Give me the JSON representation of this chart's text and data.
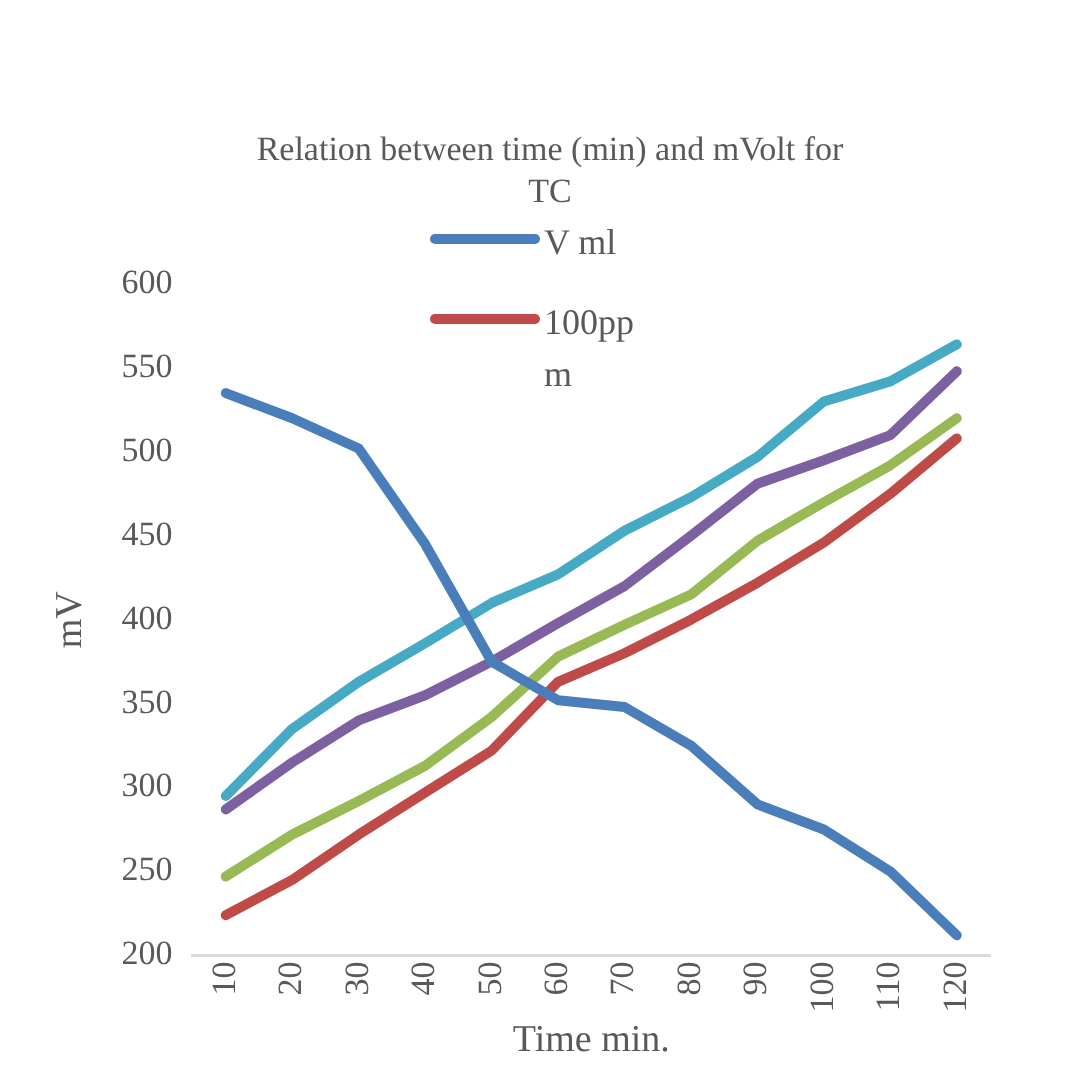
{
  "chart_data": {
    "type": "line",
    "title": "Relation between time (min) and mVolt for TC",
    "xlabel": "Time min.",
    "ylabel": "mV",
    "categories": [
      "10",
      "20",
      "30",
      "40",
      "50",
      "60",
      "70",
      "80",
      "90",
      "100",
      "110",
      "120"
    ],
    "series": [
      {
        "name": "V ml",
        "color": "#4a7ebb",
        "values": [
          535,
          520,
          502,
          445,
          375,
          352,
          348,
          325,
          290,
          275,
          250,
          212
        ]
      },
      {
        "name": "100ppm",
        "color": "#be4b48",
        "values": [
          224,
          245,
          272,
          297,
          322,
          363,
          380,
          400,
          422,
          446,
          475,
          508
        ]
      },
      {
        "color": "#98b954",
        "values": [
          247,
          272,
          292,
          313,
          342,
          378,
          397,
          415,
          447,
          470,
          492,
          520
        ]
      },
      {
        "color": "#7d60a0",
        "values": [
          287,
          315,
          340,
          355,
          375,
          398,
          420,
          450,
          481,
          495,
          510,
          548
        ]
      },
      {
        "color": "#46aac5",
        "values": [
          295,
          335,
          363,
          386,
          410,
          427,
          453,
          473,
          497,
          530,
          542,
          564
        ]
      }
    ],
    "ylim": [
      200,
      600
    ],
    "yticks": [
      200,
      250,
      300,
      350,
      400,
      450,
      500,
      550,
      600
    ],
    "grid": false,
    "legend": "top",
    "marker": "none",
    "line_style": "solid"
  }
}
